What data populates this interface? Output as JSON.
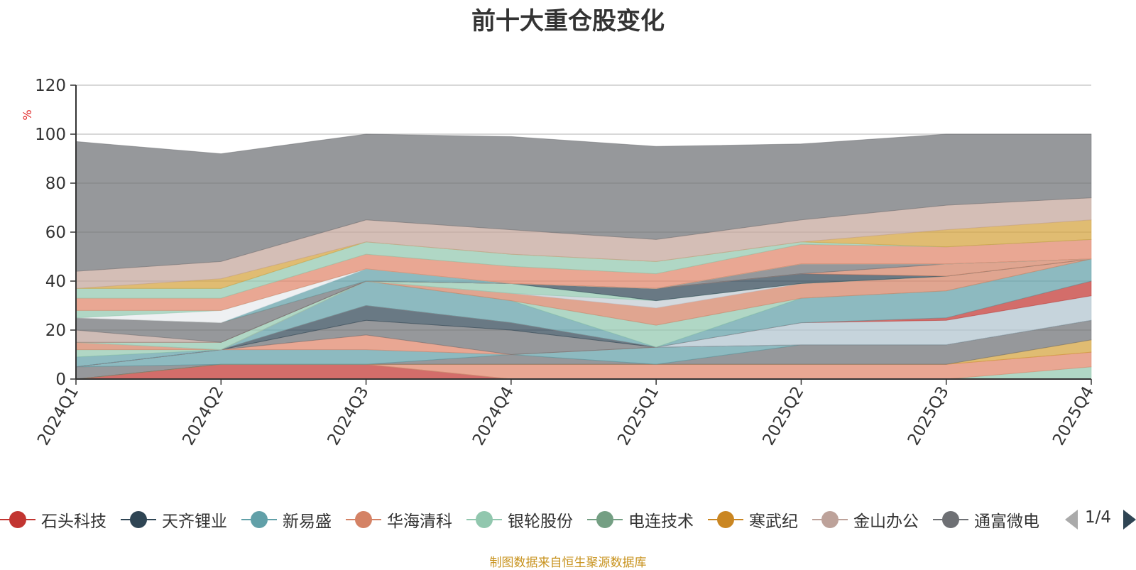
{
  "chart_data": {
    "type": "area",
    "title": "前十大重仓股变化",
    "ylabel": "%",
    "ylim": [
      0,
      120
    ],
    "yticks": [
      "0",
      "20",
      "40",
      "60",
      "80",
      "100",
      "120"
    ],
    "grid": true,
    "categories": [
      "2024Q1",
      "2024Q2",
      "2024Q3",
      "2024Q4",
      "2025Q1",
      "2025Q2",
      "2025Q3",
      "2025Q4"
    ],
    "series": [
      {
        "color": "#c23531",
        "values": [
          0,
          6,
          6,
          0,
          0,
          0,
          0,
          0
        ]
      },
      {
        "color": "#91c7ae",
        "values": [
          0,
          0,
          0,
          0,
          0,
          0,
          0,
          5
        ]
      },
      {
        "color": "#e0856a",
        "values": [
          0,
          0,
          0,
          6,
          6,
          6,
          6,
          6
        ]
      },
      {
        "color": "#d48265",
        "values": [
          0,
          0,
          0,
          0,
          0,
          0,
          0,
          0
        ]
      },
      {
        "color": "#d4a23c",
        "values": [
          0,
          0,
          0,
          0,
          0,
          0,
          0,
          5
        ]
      },
      {
        "color": "#6e7074",
        "values": [
          5,
          0,
          0,
          4,
          0,
          8,
          8,
          8
        ]
      },
      {
        "color": "#61a0a8",
        "values": [
          0,
          6,
          6,
          0,
          7,
          0,
          0,
          0
        ]
      },
      {
        "color": "#e0856a",
        "values": [
          0,
          0,
          6,
          0,
          0,
          0,
          0,
          0
        ]
      },
      {
        "color": "#6e7074",
        "values": [
          0,
          0,
          6,
          10,
          0,
          0,
          0,
          0
        ]
      },
      {
        "color": "#2f4554",
        "values": [
          0,
          0,
          6,
          3,
          0,
          0,
          0,
          0
        ]
      },
      {
        "color": "#b0c4ce",
        "values": [
          0,
          0,
          0,
          0,
          0,
          9,
          10,
          10
        ]
      },
      {
        "color": "#c23531",
        "values": [
          0,
          0,
          0,
          0,
          0,
          0,
          1,
          6
        ]
      },
      {
        "color": "#61a0a8",
        "values": [
          4,
          0,
          10,
          9,
          0,
          10,
          11,
          9
        ]
      },
      {
        "color": "#91c7ae",
        "values": [
          3,
          0,
          0,
          0,
          9,
          0,
          0,
          0
        ]
      },
      {
        "color": "#d48265",
        "values": [
          3,
          0,
          0,
          3,
          7,
          6,
          6,
          0
        ]
      },
      {
        "color": "#c4ccd3",
        "values": [
          0,
          0,
          0,
          0,
          3,
          0,
          0,
          0
        ]
      },
      {
        "color": "#91c7ae",
        "values": [
          0,
          3,
          0,
          4,
          0,
          0,
          0,
          0
        ]
      },
      {
        "color": "#2f4554",
        "values": [
          0,
          0,
          0,
          0,
          5,
          4,
          0,
          0
        ]
      },
      {
        "color": "#d48265",
        "values": [
          0,
          0,
          0,
          0,
          0,
          0,
          5,
          0
        ]
      },
      {
        "color": "#bda29a",
        "values": [
          5,
          0,
          0,
          0,
          0,
          0,
          0,
          0
        ]
      },
      {
        "color": "#6e7074",
        "values": [
          5,
          8,
          0,
          0,
          0,
          4,
          0,
          0
        ]
      },
      {
        "color": "#d48265",
        "values": [
          0,
          0,
          0,
          0,
          0,
          0,
          0,
          0
        ]
      },
      {
        "color": "#61a0a8",
        "values": [
          0,
          0,
          5,
          0,
          0,
          0,
          0,
          0
        ]
      },
      {
        "color": "#e8eaed",
        "values": [
          0,
          5,
          0,
          0,
          0,
          0,
          0,
          0
        ]
      },
      {
        "color": "#91c7ae",
        "values": [
          3,
          0,
          0,
          0,
          0,
          0,
          0,
          0
        ]
      },
      {
        "color": "#e0856a",
        "values": [
          5,
          5,
          6,
          7,
          6,
          8,
          7,
          8
        ]
      },
      {
        "color": "#91c7ae",
        "values": [
          4,
          4,
          5,
          5,
          5,
          1,
          0,
          0
        ]
      },
      {
        "color": "#d4a23c",
        "values": [
          0,
          4,
          0,
          0,
          0,
          0,
          7,
          8
        ]
      },
      {
        "color": "#c4a59a",
        "values": [
          7,
          7,
          9,
          10,
          9,
          9,
          10,
          9
        ]
      },
      {
        "color": "#6e7074",
        "values": [
          53,
          44,
          35,
          38,
          38,
          31,
          29,
          26
        ]
      }
    ]
  },
  "legend": {
    "items": [
      {
        "label": "石头科技",
        "color": "#c23531"
      },
      {
        "label": "天齐锂业",
        "color": "#2f4554"
      },
      {
        "label": "新易盛",
        "color": "#61a0a8"
      },
      {
        "label": "华海清科",
        "color": "#d48265"
      },
      {
        "label": "银轮股份",
        "color": "#91c7ae"
      },
      {
        "label": "电连技术",
        "color": "#749f83"
      },
      {
        "label": "寒武纪",
        "color": "#ca8622"
      },
      {
        "label": "金山办公",
        "color": "#bda29a"
      },
      {
        "label": "通富微电",
        "color": "#6e7074"
      }
    ],
    "page_text": "1/4"
  },
  "footer": {
    "source": "制图数据来自恒生聚源数据库"
  }
}
